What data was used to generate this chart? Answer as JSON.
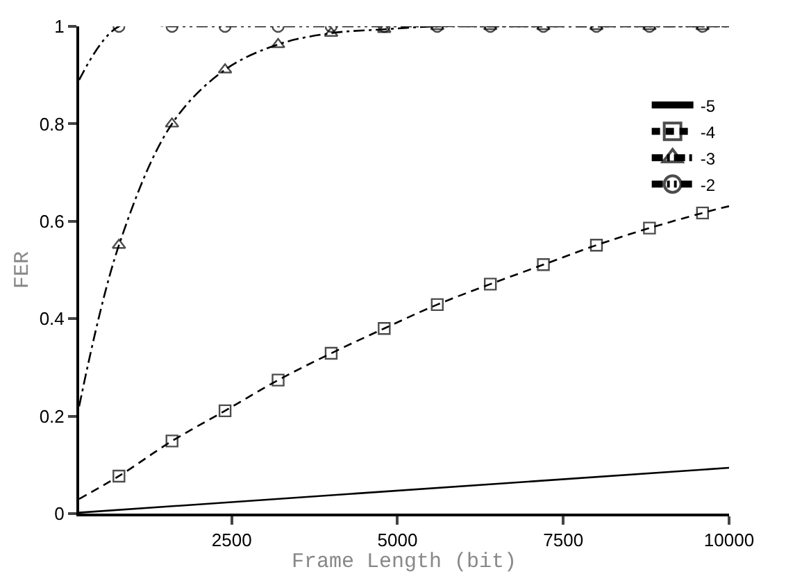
{
  "chart_data": {
    "type": "line",
    "xlabel": "Frame Length (bit)",
    "ylabel": "FER",
    "xlim": [
      200,
      10000
    ],
    "xticks": [
      2500,
      5000,
      7500,
      10000
    ],
    "ylim": [
      0,
      1
    ],
    "yticks": [
      0,
      0.2,
      0.4,
      0.6,
      0.8,
      1
    ],
    "grid": false,
    "legend": "top right",
    "series": [
      {
        "name": "-5",
        "color": "#000000",
        "marker": "none",
        "line_style": "solid",
        "x": [
          200,
          10000
        ],
        "values": [
          0.002,
          0.094
        ]
      },
      {
        "name": "-4",
        "color": "#000000",
        "marker": "square",
        "line_style": "dashed",
        "x": [
          200,
          800,
          1600,
          2400,
          3200,
          4000,
          4800,
          5600,
          6400,
          7200,
          8000,
          8800,
          9600,
          10000
        ],
        "values": [
          0.03,
          0.077,
          0.149,
          0.211,
          0.274,
          0.329,
          0.38,
          0.429,
          0.471,
          0.511,
          0.551,
          0.586,
          0.617,
          0.631
        ]
      },
      {
        "name": "-3",
        "color": "#000000",
        "marker": "triangle",
        "line_style": "dashdot",
        "x": [
          200,
          800,
          1600,
          2400,
          3200,
          4000,
          4800,
          5600,
          6400,
          7200,
          8000,
          8800,
          9600,
          10000
        ],
        "values": [
          0.22,
          0.551,
          0.8,
          0.911,
          0.963,
          0.986,
          0.994,
          1,
          1,
          1,
          1,
          1,
          1,
          1
        ]
      },
      {
        "name": "-2",
        "color": "#000000",
        "marker": "circle",
        "line_style": "dashdotdot",
        "x": [
          200,
          800,
          1600,
          2400,
          3200,
          4000,
          4800,
          5600,
          6400,
          7200,
          8000,
          8800,
          9600,
          10000
        ],
        "values": [
          0.89,
          1,
          1,
          1,
          1,
          1,
          1,
          1,
          1,
          1,
          1,
          1,
          1,
          1
        ]
      }
    ]
  }
}
